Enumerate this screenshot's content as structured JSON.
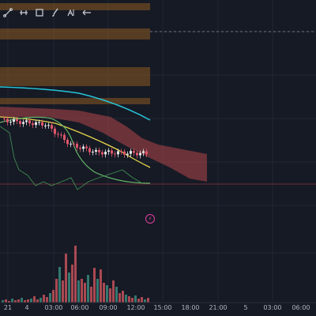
{
  "toolbar": {
    "tools": [
      {
        "name": "trend-line-tool-icon"
      },
      {
        "name": "horizontal-ray-tool-icon"
      },
      {
        "name": "rectangle-tool-icon"
      },
      {
        "name": "brush-tool-icon"
      },
      {
        "name": "annotation-tool-icon"
      },
      {
        "name": "long-position-tool-icon"
      }
    ]
  },
  "time_axis": {
    "ticks": [
      "21",
      "4",
      "03:00",
      "06:00",
      "09:00",
      "12:00",
      "15:00",
      "18:00",
      "21:00",
      "5",
      "03:00",
      "06:00"
    ]
  },
  "event_marker": {
    "glyph": "⚡"
  },
  "colors": {
    "background": "#161a25",
    "grid": "#222733",
    "bull_candle": "#e8e8e8",
    "bear_candle": "#e0566a",
    "cyan_ma": "#26c6da",
    "yellow_ma": "#e8d54a",
    "green_ma": "#66bb6a",
    "zone_orange": "#8a5a20",
    "cloud_red": "#b2474a",
    "price_line": "#c93b4c",
    "volume_red": "#c4525a",
    "volume_green": "#3a8a7e"
  }
}
